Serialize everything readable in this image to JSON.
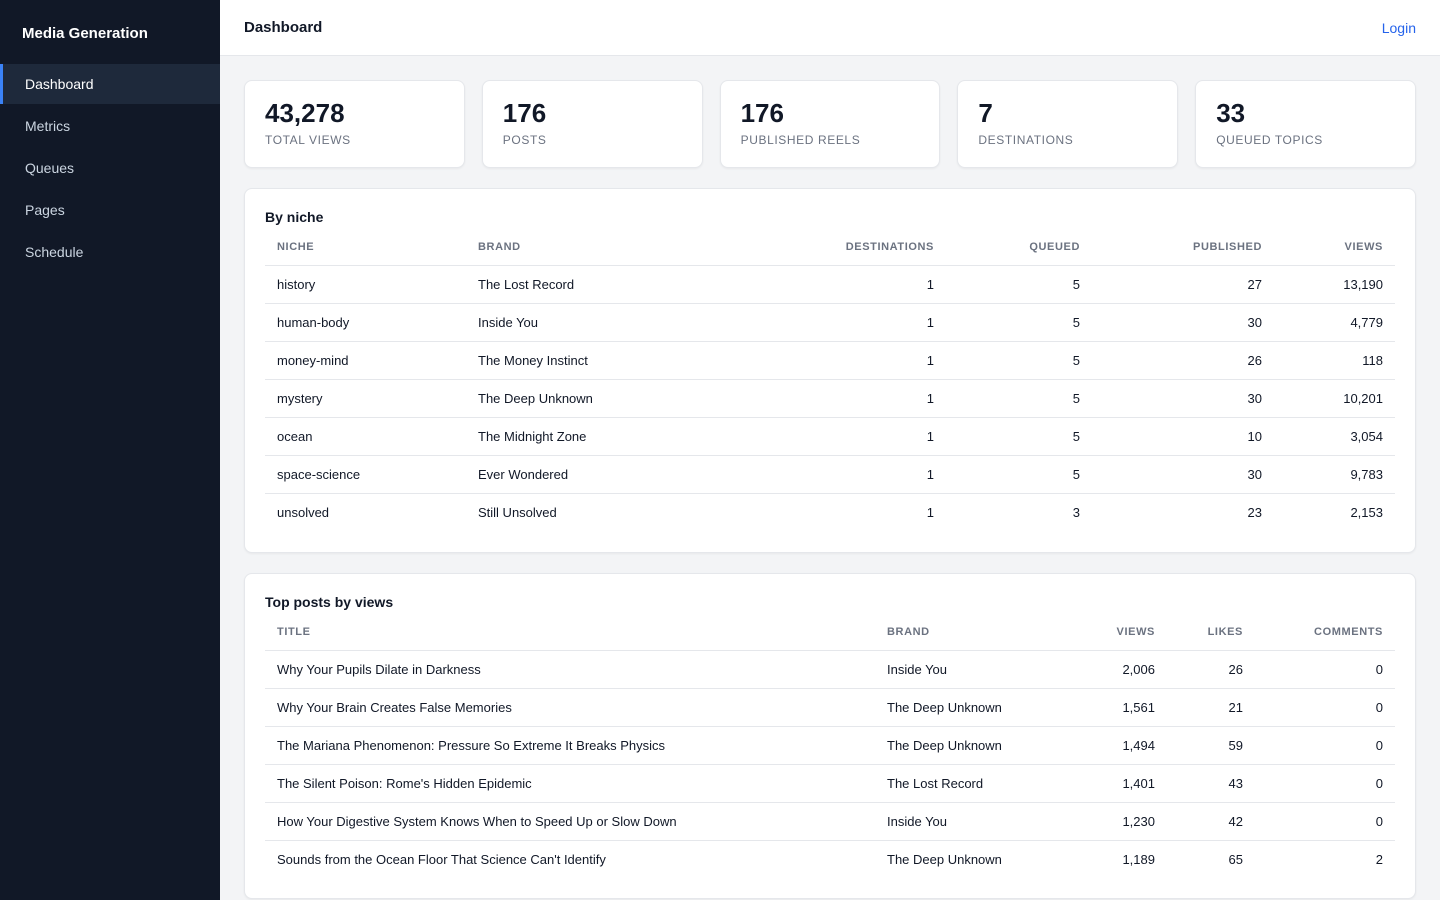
{
  "app": {
    "title": "Media Generation"
  },
  "nav": [
    {
      "label": "Dashboard",
      "active": true
    },
    {
      "label": "Metrics"
    },
    {
      "label": "Queues"
    },
    {
      "label": "Pages"
    },
    {
      "label": "Schedule"
    }
  ],
  "header": {
    "title": "Dashboard",
    "login": "Login"
  },
  "stats": [
    {
      "value": "43,278",
      "label": "TOTAL VIEWS"
    },
    {
      "value": "176",
      "label": "POSTS"
    },
    {
      "value": "176",
      "label": "PUBLISHED REELS"
    },
    {
      "value": "7",
      "label": "DESTINATIONS"
    },
    {
      "value": "33",
      "label": "QUEUED TOPICS"
    }
  ],
  "niche_table": {
    "title": "By niche",
    "columns": [
      "NICHE",
      "BRAND",
      "DESTINATIONS",
      "QUEUED",
      "PUBLISHED",
      "VIEWS"
    ],
    "rows": [
      [
        "history",
        "The Lost Record",
        "1",
        "5",
        "27",
        "13,190"
      ],
      [
        "human-body",
        "Inside You",
        "1",
        "5",
        "30",
        "4,779"
      ],
      [
        "money-mind",
        "The Money Instinct",
        "1",
        "5",
        "26",
        "118"
      ],
      [
        "mystery",
        "The Deep Unknown",
        "1",
        "5",
        "30",
        "10,201"
      ],
      [
        "ocean",
        "The Midnight Zone",
        "1",
        "5",
        "10",
        "3,054"
      ],
      [
        "space-science",
        "Ever Wondered",
        "1",
        "5",
        "30",
        "9,783"
      ],
      [
        "unsolved",
        "Still Unsolved",
        "1",
        "3",
        "23",
        "2,153"
      ]
    ]
  },
  "posts_table": {
    "title": "Top posts by views",
    "columns": [
      "TITLE",
      "BRAND",
      "VIEWS",
      "LIKES",
      "COMMENTS"
    ],
    "rows": [
      [
        "Why Your Pupils Dilate in Darkness",
        "Inside You",
        "2,006",
        "26",
        "0"
      ],
      [
        "Why Your Brain Creates False Memories",
        "The Deep Unknown",
        "1,561",
        "21",
        "0"
      ],
      [
        "The Mariana Phenomenon: Pressure So Extreme It Breaks Physics",
        "The Deep Unknown",
        "1,494",
        "59",
        "0"
      ],
      [
        "The Silent Poison: Rome's Hidden Epidemic",
        "The Lost Record",
        "1,401",
        "43",
        "0"
      ],
      [
        "How Your Digestive System Knows When to Speed Up or Slow Down",
        "Inside You",
        "1,230",
        "42",
        "0"
      ],
      [
        "Sounds from the Ocean Floor That Science Can't Identify",
        "The Deep Unknown",
        "1,189",
        "65",
        "2"
      ]
    ]
  },
  "colors": {
    "sidebar_bg": "#111827",
    "accent": "#3b82f6",
    "link": "#2563eb",
    "page_bg": "#f3f4f6"
  }
}
